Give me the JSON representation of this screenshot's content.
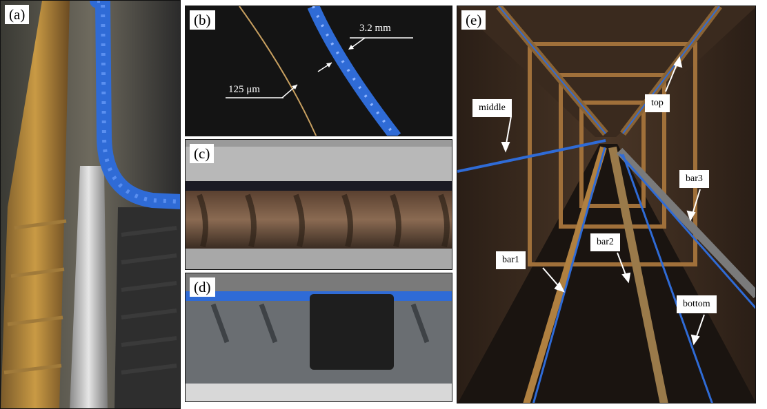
{
  "panels": {
    "a": {
      "label": "(a)"
    },
    "b": {
      "label": "(b)",
      "diameter_label": "3.2 mm",
      "fiber_label": "125 μm"
    },
    "c": {
      "label": "(c)"
    },
    "d": {
      "label": "(d)"
    },
    "e": {
      "label": "(e)",
      "annotations": {
        "middle": "middle",
        "top": "top",
        "bar3": "bar3",
        "bar2": "bar2",
        "bar1": "bar1",
        "bottom": "bottom"
      }
    }
  },
  "colors": {
    "sensor_blue": "#2f6bd6",
    "rust": "#b07a2e",
    "steel": "#6a6a6a",
    "dark_bg": "#1a1a1a"
  }
}
